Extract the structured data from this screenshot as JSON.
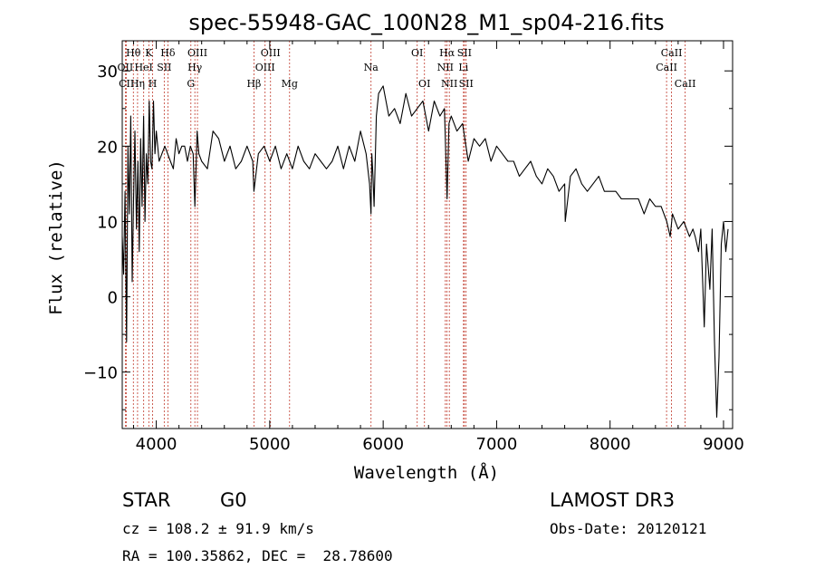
{
  "chart_data": {
    "type": "line",
    "title": "spec-55948-GAC_100N28_M1_sp04-216.fits",
    "xlabel": "Wavelength (Å)",
    "ylabel": "Flux (relative)",
    "xlim": [
      3700,
      9080
    ],
    "ylim": [
      -17.5,
      34
    ],
    "xticks": [
      4000,
      5000,
      6000,
      7000,
      8000,
      9000
    ],
    "xtick_labels": [
      "4000",
      "5000",
      "6000",
      "7000",
      "8000",
      "9000"
    ],
    "yticks": [
      -10,
      0,
      10,
      20,
      30
    ],
    "ytick_labels": [
      "−10",
      "0",
      "10",
      "20",
      "30"
    ],
    "series": [
      {
        "name": "flux",
        "x": [
          3700,
          3712,
          3725,
          3738,
          3750,
          3762,
          3775,
          3788,
          3800,
          3812,
          3825,
          3838,
          3850,
          3862,
          3875,
          3888,
          3900,
          3912,
          3925,
          3938,
          3950,
          3962,
          3975,
          3988,
          4000,
          4025,
          4050,
          4075,
          4100,
          4125,
          4150,
          4175,
          4200,
          4225,
          4250,
          4275,
          4300,
          4325,
          4340,
          4360,
          4375,
          4400,
          4450,
          4500,
          4550,
          4600,
          4650,
          4700,
          4750,
          4800,
          4850,
          4861,
          4900,
          4950,
          5000,
          5050,
          5100,
          5150,
          5200,
          5250,
          5300,
          5350,
          5400,
          5450,
          5500,
          5550,
          5600,
          5650,
          5700,
          5750,
          5800,
          5850,
          5880,
          5893,
          5900,
          5910,
          5920,
          5940,
          5960,
          6000,
          6050,
          6100,
          6150,
          6200,
          6250,
          6300,
          6350,
          6400,
          6450,
          6500,
          6540,
          6563,
          6580,
          6600,
          6650,
          6700,
          6750,
          6800,
          6850,
          6900,
          6950,
          7000,
          7050,
          7100,
          7150,
          7200,
          7250,
          7300,
          7350,
          7400,
          7450,
          7500,
          7550,
          7600,
          7605,
          7650,
          7700,
          7750,
          7800,
          7850,
          7900,
          7950,
          8000,
          8050,
          8100,
          8150,
          8200,
          8250,
          8300,
          8350,
          8400,
          8450,
          8500,
          8530,
          8550,
          8600,
          8650,
          8700,
          8730,
          8750,
          8780,
          8800,
          8830,
          8850,
          8880,
          8900,
          8920,
          8940,
          8960,
          8980,
          9000,
          9020,
          9040
        ],
        "y": [
          8,
          3,
          14,
          -6,
          20,
          11,
          24,
          2,
          13,
          22,
          9,
          18,
          6,
          21,
          12,
          24,
          10,
          19,
          15,
          26,
          18,
          17,
          26,
          19,
          22,
          18,
          19,
          20,
          19,
          18,
          17,
          21,
          19,
          20,
          20,
          18,
          20,
          19,
          12,
          22,
          19,
          18,
          17,
          22,
          21,
          18,
          20,
          17,
          18,
          20,
          18,
          14,
          19,
          20,
          18,
          20,
          17,
          19,
          17,
          20,
          18,
          17,
          19,
          18,
          17,
          18,
          20,
          17,
          20,
          18,
          22,
          19,
          15,
          11,
          19,
          16,
          12,
          24,
          27,
          28,
          24,
          25,
          23,
          27,
          24,
          25,
          26,
          22,
          26,
          24,
          25,
          13,
          23,
          24,
          22,
          23,
          18,
          21,
          20,
          21,
          18,
          20,
          19,
          18,
          18,
          16,
          17,
          18,
          16,
          15,
          17,
          16,
          14,
          15,
          10,
          16,
          17,
          15,
          14,
          15,
          16,
          14,
          14,
          14,
          13,
          13,
          13,
          13,
          11,
          13,
          12,
          12,
          10,
          8,
          11,
          9,
          10,
          8,
          9,
          8,
          6,
          9,
          -4,
          7,
          1,
          9,
          -6,
          -16,
          -8,
          7,
          10,
          6,
          9
        ]
      }
    ],
    "lines": [
      {
        "label": "Hθ",
        "wavelength": 3798,
        "row": 1
      },
      {
        "label": "OII",
        "wavelength": 3727,
        "row": 2
      },
      {
        "label": "CII",
        "wavelength": 3737,
        "row": 3
      },
      {
        "label": "Hη",
        "wavelength": 3835,
        "row": 3
      },
      {
        "label": "HeI",
        "wavelength": 3889,
        "row": 2
      },
      {
        "label": "K",
        "wavelength": 3934,
        "row": 1
      },
      {
        "label": "H",
        "wavelength": 3968,
        "row": 3
      },
      {
        "label": "SII",
        "wavelength": 4070,
        "row": 2
      },
      {
        "label": "Hδ",
        "wavelength": 4102,
        "row": 1
      },
      {
        "label": "OIII",
        "wavelength": 4363,
        "row": 1
      },
      {
        "label": "Hγ",
        "wavelength": 4340,
        "row": 2
      },
      {
        "label": "G",
        "wavelength": 4305,
        "row": 3
      },
      {
        "label": "Hβ",
        "wavelength": 4861,
        "row": 3
      },
      {
        "label": "OIII",
        "wavelength": 4959,
        "row": 2
      },
      {
        "label": "OIII",
        "wavelength": 5007,
        "row": 1
      },
      {
        "label": "Mg",
        "wavelength": 5175,
        "row": 3
      },
      {
        "label": "Na",
        "wavelength": 5893,
        "row": 2
      },
      {
        "label": "OI",
        "wavelength": 6300,
        "row": 1
      },
      {
        "label": "OI",
        "wavelength": 6364,
        "row": 3
      },
      {
        "label": "Hα",
        "wavelength": 6563,
        "row": 1
      },
      {
        "label": "NII",
        "wavelength": 6548,
        "row": 2
      },
      {
        "label": "NII",
        "wavelength": 6583,
        "row": 3
      },
      {
        "label": "SII",
        "wavelength": 6716,
        "row": 1
      },
      {
        "label": "Li",
        "wavelength": 6708,
        "row": 2
      },
      {
        "label": "SII",
        "wavelength": 6731,
        "row": 3
      },
      {
        "label": "CaII",
        "wavelength": 8542,
        "row": 1
      },
      {
        "label": "CaII",
        "wavelength": 8498,
        "row": 2
      },
      {
        "label": "CaII",
        "wavelength": 8662,
        "row": 3
      }
    ]
  },
  "info": {
    "object_class": "STAR",
    "subclass": "G0",
    "survey": "LAMOST DR3",
    "cz": "cz = 108.2 ± 91.9 km/s",
    "obs_date": "Obs-Date: 20120121",
    "coords": "RA = 100.35862, DEC =  28.78600"
  }
}
